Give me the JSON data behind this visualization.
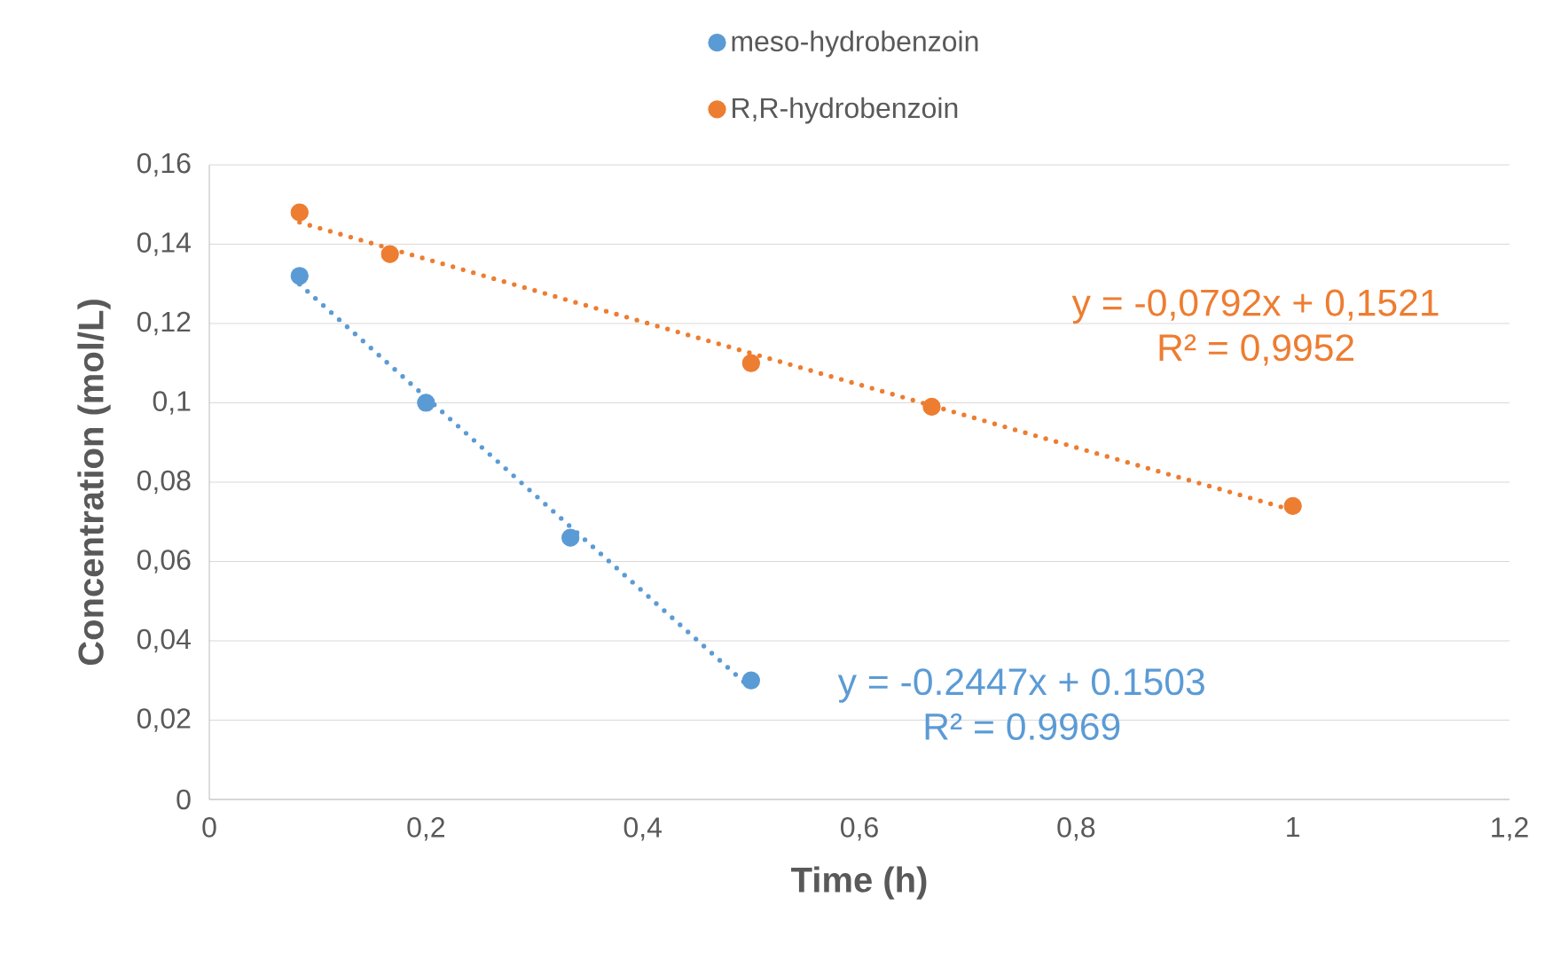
{
  "chart_data": {
    "type": "scatter",
    "xlabel": "Time (h)",
    "ylabel": "Concentration (mol/L)",
    "xlim": [
      0,
      1.2
    ],
    "ylim": [
      0,
      0.16
    ],
    "xticks": [
      0,
      {
        "value": 0.2,
        "label": "0,2"
      },
      {
        "value": 0.4,
        "label": "0,4"
      },
      {
        "value": 0.6,
        "label": "0,6"
      },
      {
        "value": 0.8,
        "label": "0,8"
      },
      1,
      {
        "value": 1.2,
        "label": "1,2"
      }
    ],
    "yticks": [
      0,
      {
        "value": 0.02,
        "label": "0,02"
      },
      {
        "value": 0.04,
        "label": "0,04"
      },
      {
        "value": 0.06,
        "label": "0,06"
      },
      {
        "value": 0.08,
        "label": "0,08"
      },
      {
        "value": 0.1,
        "label": "0,1"
      },
      {
        "value": 0.12,
        "label": "0,12"
      },
      {
        "value": 0.14,
        "label": "0,14"
      },
      {
        "value": 0.16,
        "label": "0,16"
      }
    ],
    "grid": "y",
    "legend": "top",
    "marker": "circle",
    "series": [
      {
        "name": "meso-hydrobenzoin",
        "color": "#5b9bd5",
        "x": [
          0.0833,
          0.2,
          0.3333,
          0.5
        ],
        "values": [
          0.132,
          0.1,
          0.066,
          0.03
        ]
      },
      {
        "name": "R,R-hydrobenzoin",
        "color": "#ed7d31",
        "x": [
          0.0833,
          0.1667,
          0.5,
          0.6667,
          1.0
        ],
        "values": [
          0.148,
          0.1375,
          0.11,
          0.099,
          0.074
        ]
      },
      {
        "type": "line",
        "name": "y = -0.2447x + 0.1503 R² = 0.9969",
        "color": "#5b9bd5",
        "x": [
          0.0833,
          0.5
        ],
        "values": [
          0.1299,
          0.028
        ],
        "line_style": "dotted",
        "marker": "none"
      },
      {
        "type": "line",
        "name": "y = -0,0792x + 0,1521 R² = 0,9952",
        "color": "#ed7d31",
        "x": [
          0.0833,
          1.0
        ],
        "values": [
          0.1455,
          0.0729
        ],
        "line_style": "dotted",
        "marker": "none"
      }
    ]
  }
}
